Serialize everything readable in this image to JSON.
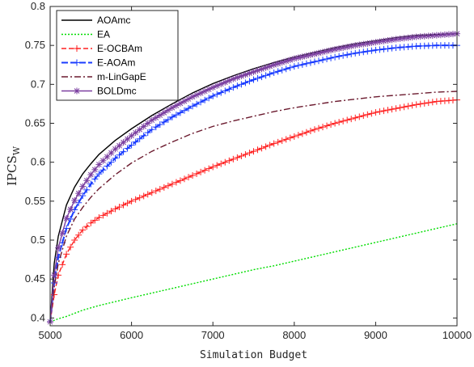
{
  "chart_data": {
    "type": "line",
    "title": "",
    "xlabel": "Simulation Budget",
    "ylabel": "IPCS",
    "ylabel_subscript": "W",
    "xlim": [
      5000,
      10000
    ],
    "ylim": [
      0.39,
      0.8
    ],
    "xticks": [
      "5000",
      "6000",
      "7000",
      "8000",
      "9000",
      "10000"
    ],
    "yticks": [
      "0.4",
      "0.45",
      "0.5",
      "0.55",
      "0.6",
      "0.65",
      "0.7",
      "0.75",
      "0.8"
    ],
    "grid": false,
    "legend_position": "top-left",
    "x": [
      5000,
      5050,
      5100,
      5200,
      5300,
      5400,
      5500,
      5600,
      5800,
      6000,
      6250,
      6500,
      6750,
      7000,
      7250,
      7500,
      7750,
      8000,
      8250,
      8500,
      8750,
      9000,
      9250,
      9500,
      9750,
      10000
    ],
    "series": [
      {
        "name": "AOAmc",
        "color": "#000000",
        "dash": "",
        "marker": "none",
        "values": [
          0.395,
          0.47,
          0.505,
          0.545,
          0.568,
          0.585,
          0.598,
          0.61,
          0.628,
          0.643,
          0.66,
          0.675,
          0.689,
          0.701,
          0.711,
          0.72,
          0.728,
          0.735,
          0.741,
          0.747,
          0.752,
          0.756,
          0.76,
          0.763,
          0.764,
          0.765
        ]
      },
      {
        "name": "EA",
        "color": "#00dd00",
        "dash": "2,2",
        "marker": "none",
        "values": [
          0.395,
          0.397,
          0.399,
          0.402,
          0.406,
          0.41,
          0.413,
          0.416,
          0.421,
          0.426,
          0.432,
          0.438,
          0.444,
          0.45,
          0.456,
          0.462,
          0.467,
          0.473,
          0.479,
          0.485,
          0.491,
          0.497,
          0.503,
          0.509,
          0.515,
          0.521
        ]
      },
      {
        "name": "E-OCBAm",
        "color": "#ff2020",
        "dash": "6,3",
        "marker": "plus",
        "values": [
          0.395,
          0.43,
          0.455,
          0.482,
          0.5,
          0.513,
          0.522,
          0.529,
          0.54,
          0.55,
          0.561,
          0.572,
          0.583,
          0.594,
          0.604,
          0.614,
          0.624,
          0.633,
          0.642,
          0.65,
          0.657,
          0.664,
          0.669,
          0.674,
          0.678,
          0.68
        ]
      },
      {
        "name": "E-AOAm",
        "color": "#1a3cff",
        "dash": "8,3",
        "marker": "plus",
        "values": [
          0.395,
          0.445,
          0.478,
          0.515,
          0.539,
          0.557,
          0.572,
          0.585,
          0.605,
          0.622,
          0.642,
          0.658,
          0.672,
          0.685,
          0.696,
          0.706,
          0.715,
          0.723,
          0.729,
          0.735,
          0.74,
          0.744,
          0.747,
          0.749,
          0.75,
          0.75
        ]
      },
      {
        "name": "m-LinGapE",
        "color": "#6b1a2e",
        "dash": "8,3,2,3",
        "marker": "none",
        "values": [
          0.395,
          0.44,
          0.47,
          0.505,
          0.527,
          0.542,
          0.555,
          0.566,
          0.584,
          0.599,
          0.614,
          0.626,
          0.637,
          0.646,
          0.653,
          0.659,
          0.665,
          0.67,
          0.674,
          0.678,
          0.681,
          0.684,
          0.686,
          0.688,
          0.69,
          0.691
        ]
      },
      {
        "name": "BOLDmc",
        "color": "#7b3fa0",
        "dash": "",
        "marker": "asterisk",
        "values": [
          0.395,
          0.455,
          0.49,
          0.528,
          0.551,
          0.569,
          0.584,
          0.597,
          0.617,
          0.634,
          0.654,
          0.67,
          0.684,
          0.696,
          0.707,
          0.716,
          0.725,
          0.733,
          0.739,
          0.745,
          0.75,
          0.754,
          0.758,
          0.761,
          0.763,
          0.765
        ]
      }
    ]
  }
}
